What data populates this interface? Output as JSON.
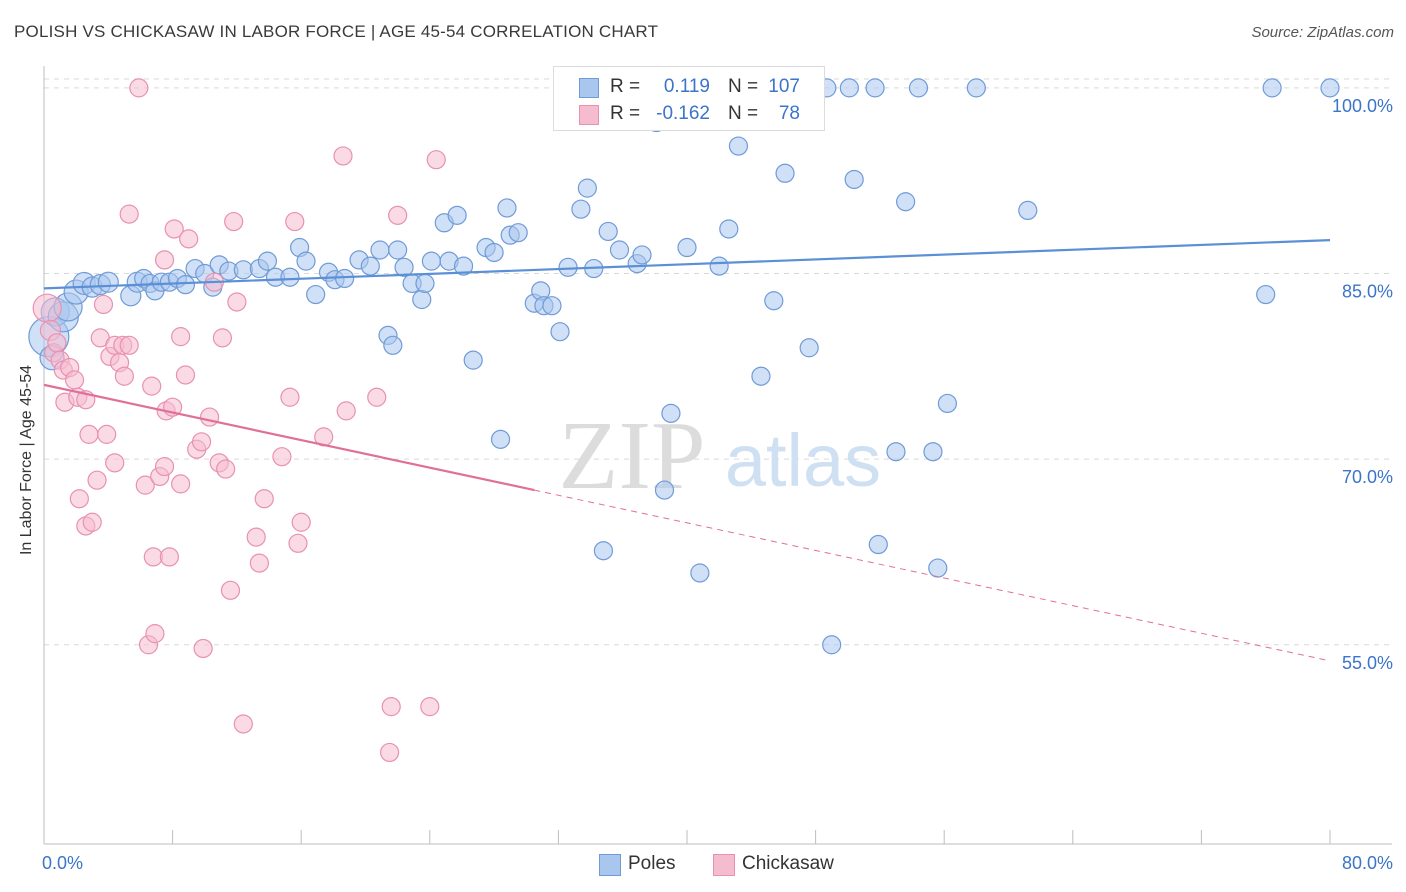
{
  "title": "POLISH VS CHICKASAW IN LABOR FORCE | AGE 45-54 CORRELATION CHART",
  "source": "Source: ZipAtlas.com",
  "watermark": {
    "zip": "ZIP",
    "atlas": "atlas"
  },
  "stats": [
    {
      "r_label": "R =",
      "r_value": "0.119",
      "n_label": "N =",
      "n_value": "107"
    },
    {
      "r_label": "R =",
      "r_value": "-0.162",
      "n_label": "N =",
      "n_value": "78"
    }
  ],
  "chart_data": {
    "type": "scatter",
    "title": "POLISH VS CHICKASAW IN LABOR FORCE | AGE 45-54 CORRELATION CHART",
    "xlabel": "",
    "ylabel": "In Labor Force | Age 45-54",
    "xlim": [
      0,
      80
    ],
    "ylim": [
      38.9,
      102.9
    ],
    "x_ticks": [
      0,
      8,
      16,
      24,
      32,
      40,
      48,
      56,
      64,
      72,
      80
    ],
    "x_tick_labels": [
      "0.0%",
      "80.0%"
    ],
    "y_ticks": [
      55,
      70,
      85,
      100
    ],
    "y_tick_labels": [
      "55.0%",
      "70.0%",
      "85.0%",
      "100.0%"
    ],
    "grid": "horizontal dashed",
    "legend_position": "bottom-center",
    "series": [
      {
        "name": "Poles",
        "color": "#5b8fd6",
        "fill": "#a9c7ee",
        "stroke": "#6f9bd8",
        "trend": {
          "x": [
            0,
            80
          ],
          "y": [
            83.8,
            87.7
          ]
        },
        "points": [
          [
            0.3,
            79.9,
            20
          ],
          [
            0.5,
            78.2,
            12
          ],
          [
            0.7,
            81.9,
            14
          ],
          [
            1.2,
            81.5,
            15
          ],
          [
            1.5,
            82.3,
            14
          ],
          [
            2.0,
            83.5,
            12
          ],
          [
            2.5,
            84.2,
            11
          ],
          [
            3.0,
            83.9,
            10
          ],
          [
            3.5,
            84.1,
            10
          ],
          [
            4.0,
            84.3,
            10
          ],
          [
            5.4,
            83.2,
            10
          ],
          [
            5.8,
            84.3,
            10
          ],
          [
            6.2,
            84.6,
            9
          ],
          [
            6.6,
            84.2,
            9
          ],
          [
            6.9,
            83.6,
            9
          ],
          [
            7.3,
            84.3,
            9
          ],
          [
            7.8,
            84.3,
            9
          ],
          [
            8.3,
            84.6,
            9
          ],
          [
            8.8,
            84.1,
            9
          ],
          [
            9.4,
            85.4,
            9
          ],
          [
            10.0,
            85.0,
            9
          ],
          [
            10.5,
            83.9,
            9
          ],
          [
            10.9,
            85.7,
            9
          ],
          [
            11.5,
            85.2,
            9
          ],
          [
            12.4,
            85.3,
            9
          ],
          [
            13.4,
            85.4,
            9
          ],
          [
            13.9,
            86.0,
            9
          ],
          [
            14.4,
            84.7,
            9
          ],
          [
            15.3,
            84.7,
            9
          ],
          [
            15.9,
            87.1,
            9
          ],
          [
            16.3,
            86.0,
            9
          ],
          [
            16.9,
            83.3,
            9
          ],
          [
            17.7,
            85.1,
            9
          ],
          [
            18.1,
            84.5,
            9
          ],
          [
            18.7,
            84.6,
            9
          ],
          [
            19.6,
            86.1,
            9
          ],
          [
            20.3,
            85.6,
            9
          ],
          [
            20.9,
            86.9,
            9
          ],
          [
            21.4,
            80.0,
            9
          ],
          [
            21.7,
            79.2,
            9
          ],
          [
            22.0,
            86.9,
            9
          ],
          [
            22.4,
            85.5,
            9
          ],
          [
            22.9,
            84.2,
            9
          ],
          [
            23.5,
            82.9,
            9
          ],
          [
            23.7,
            84.2,
            9
          ],
          [
            24.1,
            86.0,
            9
          ],
          [
            24.9,
            89.1,
            9
          ],
          [
            25.2,
            86.0,
            9
          ],
          [
            25.7,
            89.7,
            9
          ],
          [
            26.1,
            85.6,
            9
          ],
          [
            26.7,
            78.0,
            9
          ],
          [
            27.5,
            87.1,
            9
          ],
          [
            28.0,
            86.7,
            9
          ],
          [
            28.4,
            71.6,
            9
          ],
          [
            28.8,
            90.3,
            9
          ],
          [
            29.0,
            88.1,
            9
          ],
          [
            29.5,
            88.3,
            9
          ],
          [
            30.5,
            82.6,
            9
          ],
          [
            30.9,
            83.6,
            9
          ],
          [
            31.1,
            82.4,
            9
          ],
          [
            31.6,
            82.4,
            9
          ],
          [
            32.1,
            80.3,
            9
          ],
          [
            32.6,
            85.5,
            9
          ],
          [
            33.4,
            90.2,
            9
          ],
          [
            33.8,
            91.9,
            9
          ],
          [
            34.2,
            85.4,
            9
          ],
          [
            34.8,
            62.6,
            9
          ],
          [
            35.1,
            88.4,
            9
          ],
          [
            35.8,
            86.9,
            9
          ],
          [
            36.9,
            85.8,
            9
          ],
          [
            37.2,
            86.5,
            9
          ],
          [
            38.1,
            97.2,
            9
          ],
          [
            38.6,
            67.5,
            9
          ],
          [
            39.0,
            73.7,
            9
          ],
          [
            40.0,
            87.1,
            9
          ],
          [
            40.8,
            60.8,
            9
          ],
          [
            41.6,
            100.0,
            9
          ],
          [
            42.0,
            85.6,
            9
          ],
          [
            42.6,
            88.6,
            9
          ],
          [
            42.8,
            99.0,
            9
          ],
          [
            43.2,
            95.3,
            9
          ],
          [
            44.6,
            76.7,
            9
          ],
          [
            45.4,
            82.8,
            9
          ],
          [
            46.1,
            93.1,
            9
          ],
          [
            47.2,
            100.0,
            9
          ],
          [
            47.6,
            79.0,
            9
          ],
          [
            48.7,
            100.0,
            9
          ],
          [
            49.0,
            55.0,
            9
          ],
          [
            50.1,
            100.0,
            9
          ],
          [
            50.4,
            92.6,
            9
          ],
          [
            51.7,
            100.0,
            9
          ],
          [
            51.9,
            63.1,
            9
          ],
          [
            53.0,
            70.6,
            9
          ],
          [
            53.6,
            90.8,
            9
          ],
          [
            54.4,
            100.0,
            9
          ],
          [
            55.3,
            70.6,
            9
          ],
          [
            55.6,
            61.2,
            9
          ],
          [
            56.2,
            74.5,
            9
          ],
          [
            58.0,
            100.0,
            9
          ],
          [
            61.2,
            90.1,
            9
          ],
          [
            76.0,
            83.3,
            9
          ],
          [
            76.4,
            100.0,
            9
          ],
          [
            80.0,
            100.0,
            9
          ]
        ]
      },
      {
        "name": "Chickasaw",
        "color": "#e07099",
        "fill": "#f5bcd0",
        "stroke": "#e891b0",
        "trend": {
          "x": [
            0,
            30.5
          ],
          "y": [
            76.0,
            67.5
          ]
        },
        "trend_extension": {
          "x": [
            30.5,
            80
          ],
          "y": [
            67.5,
            53.7
          ]
        },
        "points": [
          [
            0.2,
            82.2,
            14
          ],
          [
            0.4,
            80.4,
            10
          ],
          [
            0.6,
            78.6,
            9
          ],
          [
            0.8,
            79.4,
            9
          ],
          [
            1.0,
            78.0,
            9
          ],
          [
            1.2,
            77.2,
            9
          ],
          [
            1.3,
            74.6,
            9
          ],
          [
            1.6,
            77.4,
            9
          ],
          [
            1.9,
            76.4,
            9
          ],
          [
            2.1,
            75.0,
            9
          ],
          [
            2.6,
            74.8,
            9
          ],
          [
            2.2,
            66.8,
            9
          ],
          [
            2.6,
            64.6,
            9
          ],
          [
            3.0,
            64.9,
            9
          ],
          [
            2.8,
            72.0,
            9
          ],
          [
            3.3,
            68.3,
            9
          ],
          [
            3.7,
            82.5,
            9
          ],
          [
            3.5,
            79.8,
            9
          ],
          [
            3.9,
            72.0,
            9
          ],
          [
            4.1,
            78.3,
            9
          ],
          [
            4.4,
            69.7,
            9
          ],
          [
            4.4,
            79.2,
            9
          ],
          [
            4.7,
            77.8,
            9
          ],
          [
            4.9,
            79.2,
            9
          ],
          [
            5.0,
            76.7,
            9
          ],
          [
            5.3,
            79.2,
            9
          ],
          [
            5.3,
            89.8,
            9
          ],
          [
            5.9,
            100.0,
            9
          ],
          [
            6.3,
            67.9,
            9
          ],
          [
            6.5,
            55.0,
            9
          ],
          [
            6.7,
            75.9,
            9
          ],
          [
            6.8,
            62.1,
            9
          ],
          [
            6.9,
            55.9,
            9
          ],
          [
            7.2,
            68.6,
            9
          ],
          [
            7.5,
            69.4,
            9
          ],
          [
            7.5,
            86.1,
            9
          ],
          [
            7.6,
            73.9,
            9
          ],
          [
            7.8,
            62.1,
            9
          ],
          [
            8.0,
            74.2,
            9
          ],
          [
            8.1,
            88.6,
            9
          ],
          [
            8.5,
            68.0,
            9
          ],
          [
            8.5,
            79.9,
            9
          ],
          [
            8.8,
            76.8,
            9
          ],
          [
            9.0,
            87.8,
            9
          ],
          [
            9.5,
            70.8,
            9
          ],
          [
            9.8,
            71.4,
            9
          ],
          [
            9.9,
            54.7,
            9
          ],
          [
            10.3,
            73.4,
            9
          ],
          [
            10.6,
            84.3,
            9
          ],
          [
            10.9,
            69.7,
            9
          ],
          [
            11.1,
            79.8,
            9
          ],
          [
            11.3,
            69.2,
            9
          ],
          [
            11.6,
            59.4,
            9
          ],
          [
            11.8,
            89.2,
            9
          ],
          [
            12.0,
            82.7,
            9
          ],
          [
            12.4,
            48.6,
            9
          ],
          [
            13.2,
            63.7,
            9
          ],
          [
            13.4,
            61.6,
            9
          ],
          [
            13.7,
            66.8,
            9
          ],
          [
            14.8,
            70.2,
            9
          ],
          [
            15.3,
            75.0,
            9
          ],
          [
            15.6,
            89.2,
            9
          ],
          [
            15.8,
            63.2,
            9
          ],
          [
            16.0,
            64.9,
            9
          ],
          [
            17.4,
            71.8,
            9
          ],
          [
            18.6,
            94.5,
            9
          ],
          [
            18.8,
            73.9,
            9
          ],
          [
            20.7,
            75.0,
            9
          ],
          [
            21.5,
            46.3,
            9
          ],
          [
            21.6,
            50.0,
            9
          ],
          [
            22.0,
            89.7,
            9
          ],
          [
            24.0,
            50.0,
            9
          ],
          [
            24.4,
            94.2,
            9
          ]
        ]
      }
    ]
  },
  "legend": [
    {
      "label": "Poles",
      "fill": "#a9c7ee",
      "stroke": "#6f9bd8"
    },
    {
      "label": "Chickasaw",
      "fill": "#f5bcd0",
      "stroke": "#e891b0"
    }
  ],
  "colors": {
    "axis_text": "#3b74c9",
    "grid": "#d9d9d9",
    "axis": "#bdbdbd"
  }
}
